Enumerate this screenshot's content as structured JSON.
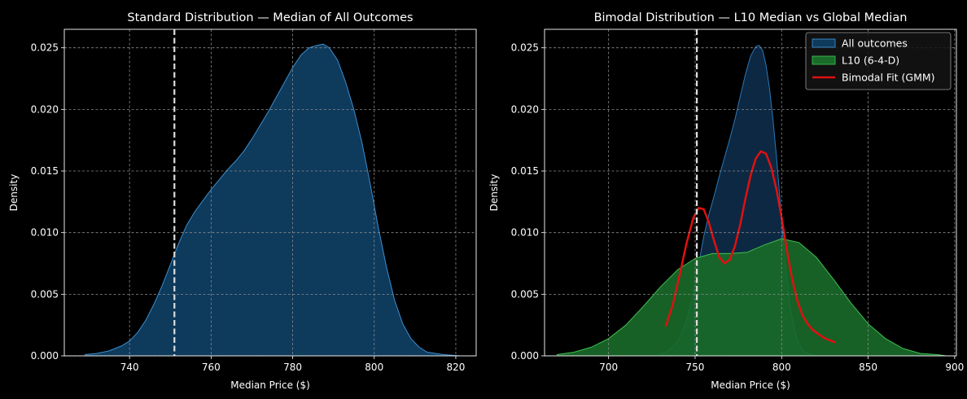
{
  "chart_data": [
    {
      "type": "area",
      "title": "Standard Distribution — Median of All Outcomes",
      "xlabel": "Median Price ($)",
      "ylabel": "Density",
      "xlim": [
        724,
        825
      ],
      "ylim": [
        0,
        0.0265
      ],
      "xticks": [
        {
          "v": 740,
          "label": "740"
        },
        {
          "v": 760,
          "label": "760"
        },
        {
          "v": 780,
          "label": "780"
        },
        {
          "v": 800,
          "label": "800"
        },
        {
          "v": 820,
          "label": "820"
        }
      ],
      "yticks": [
        {
          "v": 0,
          "label": "0.000"
        },
        {
          "v": 0.005,
          "label": "0.005"
        },
        {
          "v": 0.01,
          "label": "0.010"
        },
        {
          "v": 0.015,
          "label": "0.015"
        },
        {
          "v": 0.02,
          "label": "0.020"
        },
        {
          "v": 0.025,
          "label": "0.025"
        }
      ],
      "grid": true,
      "vline": {
        "x": 751,
        "color": "#dddddd"
      },
      "series": [
        {
          "fill": "#0e3a5c",
          "stroke": "#3a8fd0",
          "fill_opacity": 1,
          "stroke_width": 1,
          "x": [
            729,
            732,
            735,
            738,
            740,
            742,
            744,
            746,
            748,
            750,
            752,
            754,
            756,
            758,
            760,
            762,
            764,
            766,
            768,
            770,
            772,
            774,
            776,
            778,
            780,
            782,
            784,
            786,
            787.5,
            789,
            791,
            793,
            795,
            797,
            799,
            801,
            803,
            805,
            807,
            809,
            811,
            813,
            815,
            817,
            819,
            821
          ],
          "y": [
            0.0001,
            0.0002,
            0.0004,
            0.0008,
            0.0012,
            0.0019,
            0.0029,
            0.0042,
            0.0057,
            0.0074,
            0.0091,
            0.0106,
            0.0117,
            0.0126,
            0.0135,
            0.0143,
            0.0151,
            0.0158,
            0.0166,
            0.0176,
            0.0187,
            0.0198,
            0.021,
            0.0222,
            0.0234,
            0.0244,
            0.025,
            0.0252,
            0.0253,
            0.025,
            0.024,
            0.0222,
            0.02,
            0.0173,
            0.014,
            0.0104,
            0.0072,
            0.0045,
            0.0026,
            0.0014,
            0.0007,
            0.0003,
            0.0002,
            0.0001,
            5e-05,
            0.0
          ]
        }
      ]
    },
    {
      "type": "area",
      "title": "Bimodal Distribution — L10 Median vs Global Median",
      "xlabel": "Median Price ($)",
      "ylabel": "Density",
      "xlim": [
        663,
        901
      ],
      "ylim": [
        0,
        0.0265
      ],
      "xticks": [
        {
          "v": 700,
          "label": "700"
        },
        {
          "v": 750,
          "label": "750"
        },
        {
          "v": 800,
          "label": "800"
        },
        {
          "v": 850,
          "label": "850"
        },
        {
          "v": 900,
          "label": "900"
        }
      ],
      "yticks": [
        {
          "v": 0,
          "label": "0.000"
        },
        {
          "v": 0.005,
          "label": "0.005"
        },
        {
          "v": 0.01,
          "label": "0.010"
        },
        {
          "v": 0.015,
          "label": "0.015"
        },
        {
          "v": 0.02,
          "label": "0.020"
        },
        {
          "v": 0.025,
          "label": "0.025"
        }
      ],
      "grid": true,
      "vline": {
        "x": 751,
        "color": "#dddddd"
      },
      "legend": {
        "position": "top-right",
        "items": [
          {
            "label": "All outcomes",
            "type": "patch",
            "fill": "#0e3a5c",
            "stroke": "#3a8fd0"
          },
          {
            "label": "L10 (6-4-D)",
            "type": "patch",
            "fill": "#1a6b2a",
            "stroke": "#3fbf4f"
          },
          {
            "label": "Bimodal Fit (GMM)",
            "type": "line",
            "stroke": "#e01010"
          }
        ]
      },
      "series": [
        {
          "name": "All outcomes",
          "kind": "area",
          "fill": "#0e2c4a",
          "stroke": "#2a78b8",
          "fill_opacity": 0.9,
          "stroke_width": 1,
          "x": [
            729,
            733,
            737,
            741,
            745,
            749,
            752,
            755,
            758,
            761,
            764,
            767,
            770,
            773,
            776,
            779,
            782,
            785,
            787,
            789,
            791,
            793,
            795,
            797,
            799,
            801,
            803,
            805,
            807,
            809,
            811,
            813,
            815,
            817,
            819,
            821
          ],
          "y": [
            0.0001,
            0.0003,
            0.0007,
            0.0014,
            0.0028,
            0.005,
            0.0074,
            0.0097,
            0.0115,
            0.013,
            0.0146,
            0.0161,
            0.0176,
            0.0192,
            0.021,
            0.0228,
            0.0243,
            0.0251,
            0.0252,
            0.0248,
            0.0236,
            0.0217,
            0.0192,
            0.0162,
            0.0128,
            0.0093,
            0.0063,
            0.004,
            0.0024,
            0.0013,
            0.0007,
            0.0003,
            0.0002,
            0.0001,
            5e-05,
            0.0
          ]
        },
        {
          "name": "L10 (6-4-D)",
          "kind": "area",
          "fill": "#1a6b2a",
          "stroke": "#3fbf4f",
          "fill_opacity": 0.9,
          "stroke_width": 1,
          "x": [
            670,
            680,
            690,
            700,
            710,
            720,
            730,
            740,
            750,
            760,
            770,
            780,
            790,
            800,
            810,
            820,
            830,
            840,
            850,
            860,
            870,
            880,
            890,
            895
          ],
          "y": [
            0.0001,
            0.0003,
            0.0007,
            0.0014,
            0.0025,
            0.004,
            0.0056,
            0.007,
            0.0079,
            0.0083,
            0.0083,
            0.0084,
            0.009,
            0.0095,
            0.0092,
            0.008,
            0.0062,
            0.0043,
            0.0026,
            0.0014,
            0.0006,
            0.0002,
            0.0001,
            0.0
          ]
        },
        {
          "name": "Bimodal Fit (GMM)",
          "kind": "line",
          "stroke": "#e01010",
          "stroke_width": 2.5,
          "x": [
            733,
            737,
            741,
            745,
            749,
            752,
            755,
            758,
            761,
            764,
            767,
            770,
            773,
            776,
            779,
            782,
            785,
            788,
            791,
            794,
            797,
            800,
            803,
            806,
            809,
            812,
            815,
            818,
            821,
            824,
            827,
            831
          ],
          "y": [
            0.0024,
            0.0041,
            0.0065,
            0.0091,
            0.0112,
            0.012,
            0.0119,
            0.0108,
            0.0093,
            0.008,
            0.0075,
            0.0078,
            0.0089,
            0.0106,
            0.0127,
            0.0146,
            0.016,
            0.0166,
            0.0164,
            0.0153,
            0.0135,
            0.0112,
            0.0086,
            0.0063,
            0.0045,
            0.0033,
            0.0026,
            0.0021,
            0.0018,
            0.0015,
            0.0013,
            0.0011
          ]
        }
      ]
    }
  ]
}
